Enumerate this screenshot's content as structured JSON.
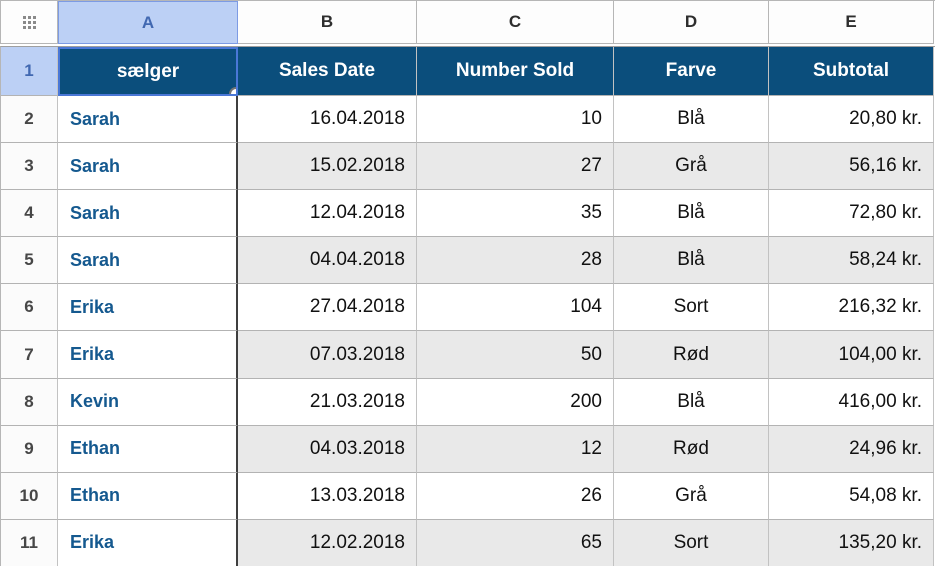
{
  "colors": {
    "header_blue": "#0b4e7c",
    "selection_blue": "#4a77d6",
    "sel_header_bg": "#bcd0f5",
    "sel_header_text": "#4168b1",
    "alt_gray": "#e9e9e9",
    "name_blue": "#15598f"
  },
  "table": {
    "corner_icon": "grid-dots-handle",
    "column_letters": [
      "A",
      "B",
      "C",
      "D",
      "E"
    ],
    "selection": {
      "cell": "A1",
      "column": "A",
      "row": "1"
    },
    "header_row": {
      "row_number": "1",
      "cells": [
        "sælger",
        "Sales Date",
        "Number Sold",
        "Farve",
        "Subtotal"
      ]
    },
    "rows": [
      {
        "row_number": "2",
        "seller": "Sarah",
        "date": "16.04.2018",
        "number_sold": "10",
        "color": "Blå",
        "subtotal": "20,80 kr."
      },
      {
        "row_number": "3",
        "seller": "Sarah",
        "date": "15.02.2018",
        "number_sold": "27",
        "color": "Grå",
        "subtotal": "56,16 kr."
      },
      {
        "row_number": "4",
        "seller": "Sarah",
        "date": "12.04.2018",
        "number_sold": "35",
        "color": "Blå",
        "subtotal": "72,80 kr."
      },
      {
        "row_number": "5",
        "seller": "Sarah",
        "date": "04.04.2018",
        "number_sold": "28",
        "color": "Blå",
        "subtotal": "58,24 kr."
      },
      {
        "row_number": "6",
        "seller": "Erika",
        "date": "27.04.2018",
        "number_sold": "104",
        "color": "Sort",
        "subtotal": "216,32 kr."
      },
      {
        "row_number": "7",
        "seller": "Erika",
        "date": "07.03.2018",
        "number_sold": "50",
        "color": "Rød",
        "subtotal": "104,00 kr."
      },
      {
        "row_number": "8",
        "seller": "Kevin",
        "date": "21.03.2018",
        "number_sold": "200",
        "color": "Blå",
        "subtotal": "416,00 kr."
      },
      {
        "row_number": "9",
        "seller": "Ethan",
        "date": "04.03.2018",
        "number_sold": "12",
        "color": "Rød",
        "subtotal": "24,96 kr."
      },
      {
        "row_number": "10",
        "seller": "Ethan",
        "date": "13.03.2018",
        "number_sold": "26",
        "color": "Grå",
        "subtotal": "54,08 kr."
      },
      {
        "row_number": "11",
        "seller": "Erika",
        "date": "12.02.2018",
        "number_sold": "65",
        "color": "Sort",
        "subtotal": "135,20 kr."
      }
    ]
  }
}
